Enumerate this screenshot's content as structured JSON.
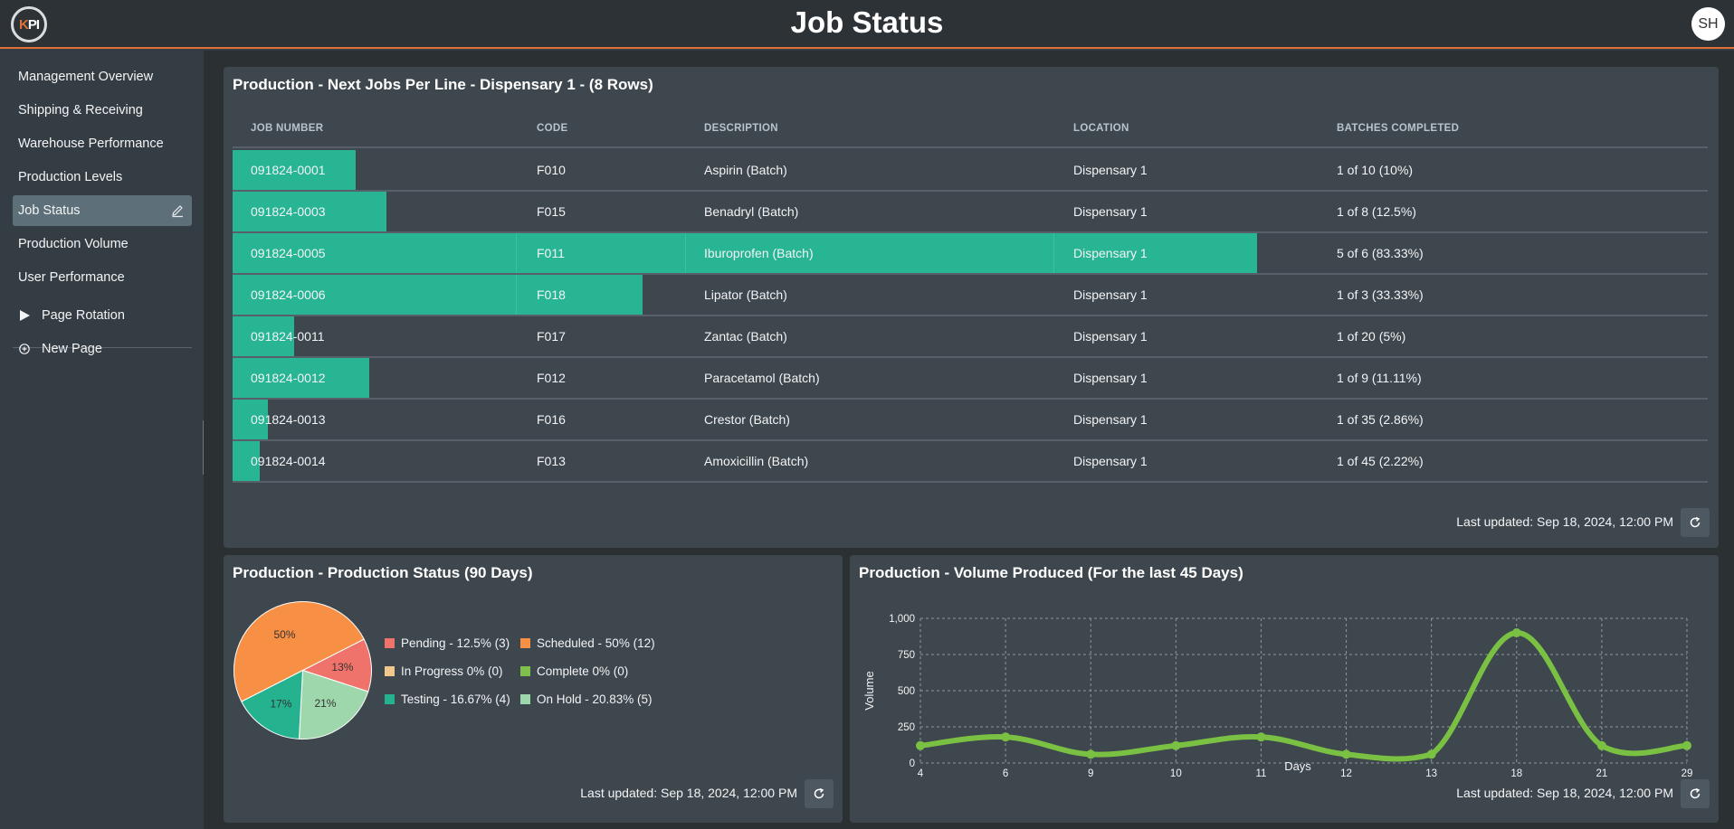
{
  "header": {
    "title": "Job Status",
    "logo_text": "KPI",
    "user_initials": "SH"
  },
  "sidebar": {
    "items": [
      {
        "label": "Management Overview"
      },
      {
        "label": "Shipping & Receiving"
      },
      {
        "label": "Warehouse Performance"
      },
      {
        "label": "Production Levels"
      },
      {
        "label": "Job Status",
        "active": true
      },
      {
        "label": "Production Volume"
      },
      {
        "label": "User Performance"
      }
    ],
    "actions": [
      {
        "label": "Page Rotation",
        "icon": "play-icon"
      },
      {
        "label": "New Page",
        "icon": "plus-circle-icon"
      }
    ]
  },
  "jobs_card": {
    "title": "Production - Next Jobs Per Line - Dispensary 1 - (8 Rows)",
    "columns": [
      "JOB NUMBER",
      "CODE",
      "DESCRIPTION",
      "LOCATION",
      "BATCHES COMPLETED"
    ],
    "rows": [
      {
        "job": "091824-0001",
        "code": "F010",
        "desc": "Aspirin (Batch)",
        "loc": "Dispensary 1",
        "batches": "1 of 10 (10%)",
        "progress": 0.1
      },
      {
        "job": "091824-0003",
        "code": "F015",
        "desc": "Benadryl (Batch)",
        "loc": "Dispensary 1",
        "batches": "1 of 8 (12.5%)",
        "progress": 0.125
      },
      {
        "job": "091824-0005",
        "code": "F011",
        "desc": "Iburoprofen (Batch)",
        "loc": "Dispensary 1",
        "batches": "5 of 6 (83.33%)",
        "progress": 0.8333
      },
      {
        "job": "091824-0006",
        "code": "F018",
        "desc": "Lipator (Batch)",
        "loc": "Dispensary 1",
        "batches": "1 of 3 (33.33%)",
        "progress": 0.3333
      },
      {
        "job": "091824-0011",
        "code": "F017",
        "desc": "Zantac (Batch)",
        "loc": "Dispensary 1",
        "batches": "1 of 20 (5%)",
        "progress": 0.05
      },
      {
        "job": "091824-0012",
        "code": "F012",
        "desc": "Paracetamol (Batch)",
        "loc": "Dispensary 1",
        "batches": "1 of 9 (11.11%)",
        "progress": 0.1111
      },
      {
        "job": "091824-0013",
        "code": "F016",
        "desc": "Crestor (Batch)",
        "loc": "Dispensary 1",
        "batches": "1 of 35 (2.86%)",
        "progress": 0.0286
      },
      {
        "job": "091824-0014",
        "code": "F013",
        "desc": "Amoxicillin (Batch)",
        "loc": "Dispensary 1",
        "batches": "1 of 45 (2.22%)",
        "progress": 0.0222
      }
    ],
    "updated": "Last updated: Sep 18, 2024, 12:00 PM"
  },
  "status_card": {
    "title": "Production - Production Status (90 Days)",
    "updated": "Last updated: Sep 18, 2024, 12:00 PM"
  },
  "volume_card": {
    "title": "Production - Volume Produced (For the last 45 Days)",
    "updated": "Last updated: Sep 18, 2024, 12:00 PM"
  },
  "chart_data": [
    {
      "type": "pie",
      "title": "Production - Production Status (90 Days)",
      "slices": [
        {
          "label": "Pending - 12.5% (3)",
          "value": 3,
          "pct_label": "13%",
          "color": "#f0736b"
        },
        {
          "label": "Scheduled - 50% (12)",
          "value": 12,
          "pct_label": "50%",
          "color": "#f78f44"
        },
        {
          "label": "In Progress 0% (0)",
          "value": 0,
          "pct_label": "",
          "color": "#f1c78b"
        },
        {
          "label": "Complete 0% (0)",
          "value": 0,
          "pct_label": "",
          "color": "#7fc04a"
        },
        {
          "label": "Testing - 16.67% (4)",
          "value": 4,
          "pct_label": "17%",
          "color": "#25b28f"
        },
        {
          "label": "On Hold - 20.83% (5)",
          "value": 5,
          "pct_label": "21%",
          "color": "#9fd7ad"
        }
      ],
      "legend_placement": "right"
    },
    {
      "type": "line",
      "title": "Production - Volume Produced (For the last 45 Days)",
      "xlabel": "Days",
      "ylabel": "Volume",
      "categories": [
        "4",
        "6",
        "9",
        "10",
        "11",
        "12",
        "13",
        "18",
        "21",
        "29"
      ],
      "series": [
        {
          "values": [
            120,
            180,
            60,
            120,
            180,
            60,
            60,
            900,
            120,
            120
          ],
          "color": "#7ac143"
        }
      ],
      "yticks": [
        "0",
        "250",
        "500",
        "750",
        "1,000"
      ],
      "ylim": [
        0,
        1000
      ],
      "grid": true
    }
  ]
}
